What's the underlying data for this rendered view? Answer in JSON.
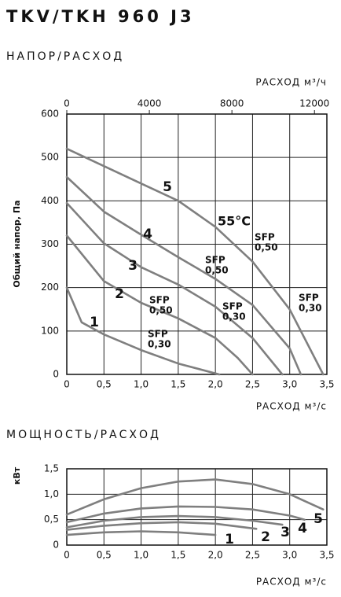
{
  "title": "TKV/TKH 960 J3",
  "chart_data": [
    {
      "type": "line",
      "title": "НАПОР/РАСХОД",
      "x_label": "РАСХОД м³/с",
      "x2_label": "РАСХОД м³/ч",
      "y_label": "Общий напор, Па",
      "xlim": [
        0,
        3.5
      ],
      "xticks": [
        0,
        {
          "value": 0.5,
          "label": "0,5"
        },
        {
          "value": 1,
          "label": "1,0"
        },
        {
          "value": 1.5,
          "label": "1,5"
        },
        {
          "value": 2,
          "label": "2,0"
        },
        {
          "value": 2.5,
          "label": "2,5"
        },
        {
          "value": 3,
          "label": "3,0"
        },
        {
          "value": 3.5,
          "label": "3,5"
        }
      ],
      "x2lim": [
        0,
        12600
      ],
      "x2ticks": [
        0,
        4000,
        8000,
        12000
      ],
      "ylim": [
        0,
        600
      ],
      "yticks": [
        0,
        100,
        200,
        300,
        400,
        500,
        600
      ],
      "grid": true,
      "color": "#7f7f7f",
      "series": [
        {
          "name": "1",
          "x": [
            0,
            0.2,
            0.5,
            1.0,
            1.5,
            2.05
          ],
          "values": [
            200,
            120,
            92,
            56,
            25,
            0
          ]
        },
        {
          "name": "2",
          "x": [
            0,
            0.5,
            1.0,
            1.5,
            2.0,
            2.3,
            2.5
          ],
          "values": [
            320,
            215,
            165,
            129,
            84,
            38,
            0
          ]
        },
        {
          "name": "3",
          "x": [
            0,
            0.5,
            1.0,
            1.5,
            2.0,
            2.5,
            2.9
          ],
          "values": [
            395,
            302,
            247,
            207,
            156,
            84,
            0
          ]
        },
        {
          "name": "4",
          "x": [
            0,
            0.5,
            1.0,
            1.5,
            2.0,
            2.5,
            3.0,
            3.15
          ],
          "values": [
            455,
            375,
            322,
            270,
            220,
            160,
            60,
            0
          ]
        },
        {
          "name": "5",
          "x": [
            0,
            0.5,
            1.0,
            1.5,
            2.0,
            2.5,
            3.0,
            3.45
          ],
          "values": [
            520,
            480,
            440,
            400,
            340,
            260,
            150,
            0
          ]
        }
      ],
      "annotations": [
        {
          "lines": [
            "55°C"
          ]
        },
        {
          "lines": [
            "SFP",
            "0,50"
          ]
        },
        {
          "lines": [
            "SFP",
            "0,50"
          ]
        },
        {
          "lines": [
            "SFP",
            "0,50"
          ]
        },
        {
          "lines": [
            "SFP",
            "0,30"
          ]
        },
        {
          "lines": [
            "SFP",
            "0,30"
          ]
        },
        {
          "lines": [
            "SFP",
            "0,30"
          ]
        }
      ]
    },
    {
      "type": "line",
      "title": "МОЩНОСТЬ/РАСХОД",
      "x_label": "РАСХОД м³/с",
      "y_label": "кВт",
      "xlim": [
        0,
        3.5
      ],
      "xticks": [
        0,
        {
          "value": 0.5,
          "label": "0,5"
        },
        {
          "value": 1,
          "label": "1,0"
        },
        {
          "value": 1.5,
          "label": "1,5"
        },
        {
          "value": 2,
          "label": "2,0"
        },
        {
          "value": 2.5,
          "label": "2,5"
        },
        {
          "value": 3,
          "label": "3,0"
        },
        {
          "value": 3.5,
          "label": "3,5"
        }
      ],
      "ylim": [
        0,
        1.5
      ],
      "yticks": [
        0,
        {
          "value": 0.5,
          "label": "0,5"
        },
        {
          "value": 1,
          "label": "1,0"
        },
        {
          "value": 1.5,
          "label": "1,5"
        }
      ],
      "grid": true,
      "color": "#7f7f7f",
      "series": [
        {
          "name": "1",
          "x": [
            0,
            0.5,
            1.0,
            1.5,
            2.0
          ],
          "values": [
            0.2,
            0.25,
            0.27,
            0.25,
            0.2
          ]
        },
        {
          "name": "2",
          "x": [
            0,
            0.5,
            1.0,
            1.5,
            2.0,
            2.55
          ],
          "values": [
            0.3,
            0.38,
            0.43,
            0.45,
            0.42,
            0.32
          ]
        },
        {
          "name": "3",
          "x": [
            0,
            0.5,
            1.0,
            1.5,
            2.0,
            2.5,
            2.9
          ],
          "values": [
            0.35,
            0.48,
            0.55,
            0.57,
            0.55,
            0.48,
            0.4
          ]
        },
        {
          "name": "4",
          "x": [
            0,
            0.5,
            1.0,
            1.5,
            2.0,
            2.5,
            3.0,
            3.2
          ],
          "values": [
            0.45,
            0.62,
            0.72,
            0.76,
            0.75,
            0.7,
            0.58,
            0.5
          ]
        },
        {
          "name": "5",
          "x": [
            0,
            0.5,
            1.0,
            1.5,
            2.0,
            2.5,
            3.0,
            3.45
          ],
          "values": [
            0.6,
            0.9,
            1.12,
            1.25,
            1.29,
            1.2,
            1.0,
            0.7
          ]
        }
      ]
    }
  ]
}
